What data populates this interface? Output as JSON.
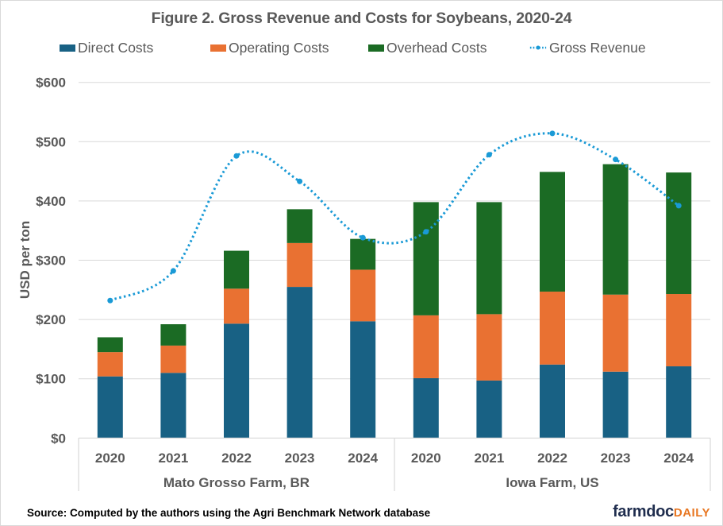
{
  "chart_data": {
    "type": "bar",
    "stacked": true,
    "title": "Figure  2. Gross Revenue and Costs for Soybeans, 2020-24",
    "xlabel": "",
    "ylabel": "USD per ton",
    "ylim": [
      0,
      600
    ],
    "yticks": [
      0,
      100,
      200,
      300,
      400,
      500,
      600
    ],
    "ytick_labels": [
      "$0",
      "$100",
      "$200",
      "$300",
      "$400",
      "$500",
      "$600"
    ],
    "grid": true,
    "legend_position": "top",
    "categories": [
      "2020",
      "2021",
      "2022",
      "2023",
      "2024",
      "2020",
      "2021",
      "2022",
      "2023",
      "2024"
    ],
    "groups": [
      {
        "label": "Mato Grosso Farm, BR",
        "categories": [
          "2020",
          "2021",
          "2022",
          "2023",
          "2024"
        ]
      },
      {
        "label": "Iowa Farm, US",
        "categories": [
          "2020",
          "2021",
          "2022",
          "2023",
          "2024"
        ]
      }
    ],
    "series": [
      {
        "name": "Direct Costs",
        "kind": "bar",
        "color": "#186184",
        "values": [
          104,
          110,
          193,
          255,
          197,
          101,
          97,
          124,
          112,
          121
        ]
      },
      {
        "name": "Operating Costs",
        "kind": "bar",
        "color": "#e97132",
        "values": [
          41,
          46,
          59,
          74,
          87,
          106,
          112,
          123,
          130,
          122
        ]
      },
      {
        "name": "Overhead Costs",
        "kind": "bar",
        "color": "#1b6b24",
        "values": [
          25,
          36,
          64,
          57,
          52,
          191,
          189,
          202,
          220,
          205
        ]
      },
      {
        "name": "Gross Revenue",
        "kind": "line",
        "style": "dotted-smooth",
        "color": "#1a9ad6",
        "values": [
          232,
          282,
          476,
          433,
          338,
          348,
          478,
          514,
          470,
          392
        ]
      }
    ]
  },
  "footer": {
    "source": "Source: Computed by the authors using the Agri Benchmark Network database",
    "logo_main": "farmdoc",
    "logo_accent": "DAILY"
  }
}
